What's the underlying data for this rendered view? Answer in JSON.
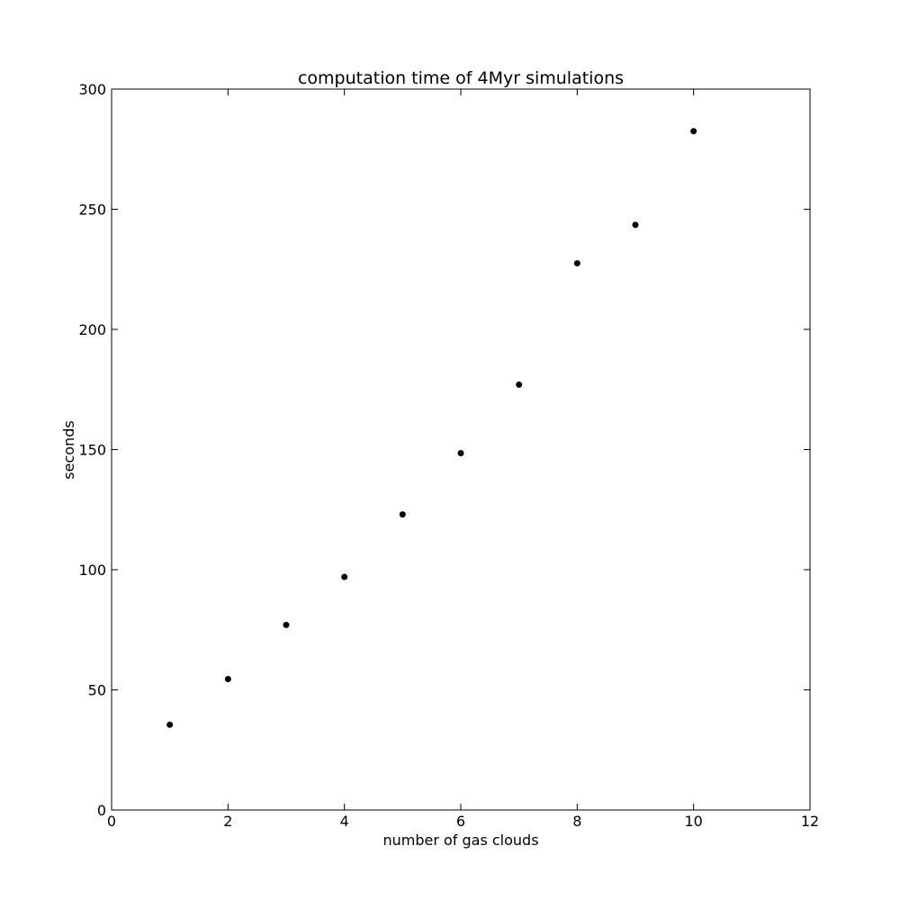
{
  "chart_data": {
    "type": "scatter",
    "title": "computation time of 4Myr simulations",
    "xlabel": "number of gas clouds",
    "ylabel": "seconds",
    "xlim": [
      0,
      12
    ],
    "ylim": [
      0,
      300
    ],
    "xticks": [
      0,
      2,
      4,
      6,
      8,
      10,
      12
    ],
    "yticks": [
      0,
      50,
      100,
      150,
      200,
      250,
      300
    ],
    "grid": false,
    "marker_color": "#000000",
    "series": [
      {
        "x": [
          1,
          2,
          3,
          4,
          5,
          6,
          7,
          8,
          9,
          10
        ],
        "y": [
          35.5,
          54.5,
          77,
          97,
          123,
          148.5,
          177,
          227.5,
          243.5,
          282.5
        ]
      }
    ]
  }
}
